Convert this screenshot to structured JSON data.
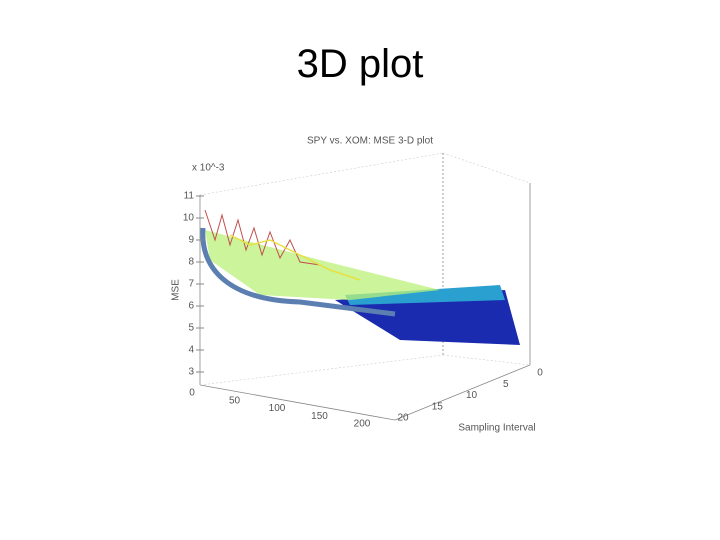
{
  "slide": {
    "title": "3D plot"
  },
  "figure": {
    "title": "SPY vs. XOM: MSE 3-D plot",
    "z_exponent": "x 10^-3",
    "z_label": "MSE",
    "y_label": "Sampling Interval",
    "z_ticks": [
      "11",
      "10",
      "9",
      "8",
      "7",
      "6",
      "5",
      "4",
      "3"
    ],
    "x_ticks": [
      "0",
      "50",
      "100",
      "150",
      "200"
    ],
    "y_ticks": [
      "0",
      "5",
      "10",
      "15",
      "20"
    ]
  }
}
